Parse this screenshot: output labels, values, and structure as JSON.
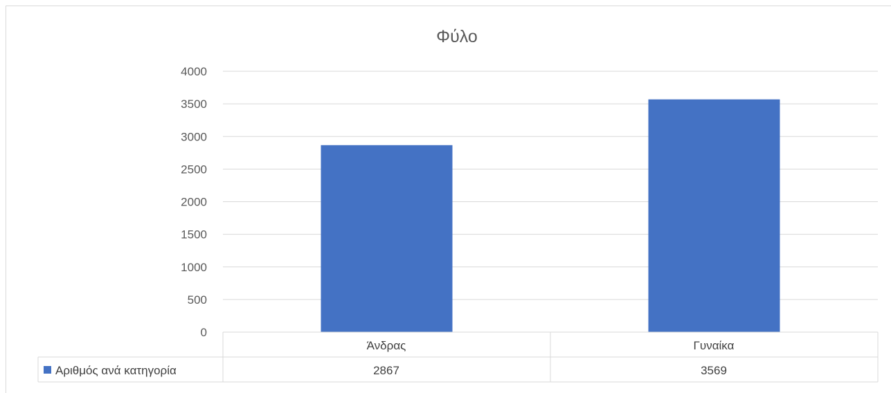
{
  "chart_data": {
    "type": "bar",
    "title": "Φύλο",
    "categories": [
      "Άνδρας",
      "Γυναίκα"
    ],
    "series": [
      {
        "name": "Αριθμός ανά κατηγορία",
        "values": [
          2867,
          3569
        ],
        "color": "#4472C4"
      }
    ],
    "ylim": [
      0,
      4000
    ],
    "yticks": [
      "0",
      "500",
      "1000",
      "1500",
      "2000",
      "2500",
      "3000",
      "3500",
      "4000"
    ],
    "grid": true,
    "legend": "data-table",
    "data_table": [
      {
        "category": "Άνδρας",
        "value": "2867"
      },
      {
        "category": "Γυναίκα",
        "value": "3569"
      }
    ]
  }
}
